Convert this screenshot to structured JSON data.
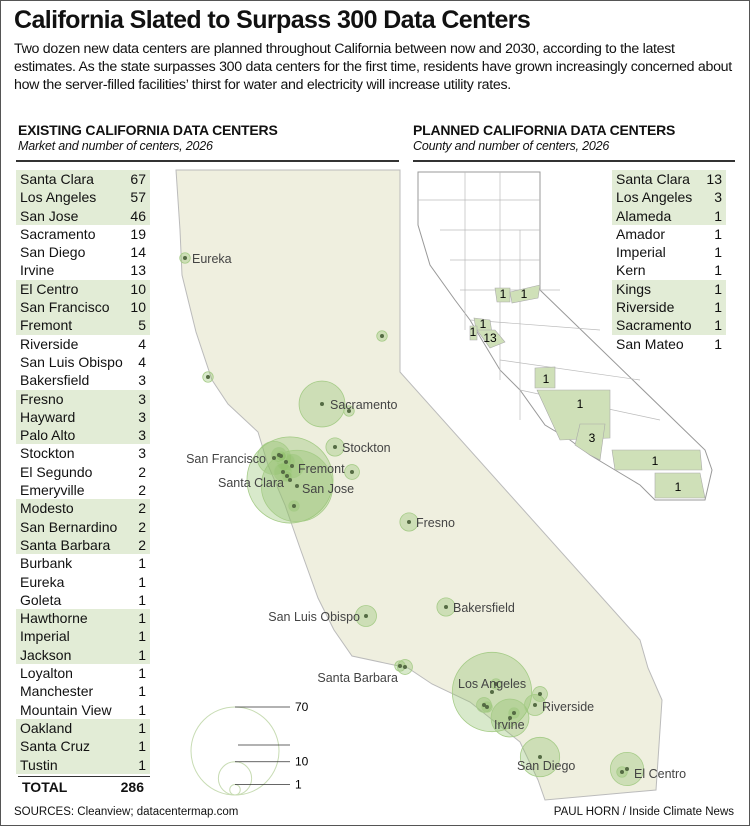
{
  "title": "California Slated to Surpass 300 Data Centers",
  "intro": "Two dozen new data centers are planned throughout California between now and 2030, according to the latest estimates. As the state surpasses 300 data centers for the first time, residents have grown increasingly concerned about how the server-filled facilities’ thirst for water and electricity will increase utility rates.",
  "existing": {
    "heading": "EXISTING CALIFORNIA DATA CENTERS",
    "subheading": "Market and number of centers, 2026",
    "rows": [
      {
        "name": "Santa Clara",
        "count": 67
      },
      {
        "name": "Los Angeles",
        "count": 57
      },
      {
        "name": "San Jose",
        "count": 46
      },
      {
        "name": "Sacramento",
        "count": 19
      },
      {
        "name": "San Diego",
        "count": 14
      },
      {
        "name": "Irvine",
        "count": 13
      },
      {
        "name": "El Centro",
        "count": 10
      },
      {
        "name": "San Francisco",
        "count": 10
      },
      {
        "name": "Fremont",
        "count": 5
      },
      {
        "name": "Riverside",
        "count": 4
      },
      {
        "name": "San Luis Obispo",
        "count": 4
      },
      {
        "name": "Bakersfield",
        "count": 3
      },
      {
        "name": "Fresno",
        "count": 3
      },
      {
        "name": "Hayward",
        "count": 3
      },
      {
        "name": "Palo Alto",
        "count": 3
      },
      {
        "name": "Stockton",
        "count": 3
      },
      {
        "name": "El Segundo",
        "count": 2
      },
      {
        "name": "Emeryville",
        "count": 2
      },
      {
        "name": "Modesto",
        "count": 2
      },
      {
        "name": "San Bernardino",
        "count": 2
      },
      {
        "name": "Santa Barbara",
        "count": 2
      },
      {
        "name": "Burbank",
        "count": 1
      },
      {
        "name": "Eureka",
        "count": 1
      },
      {
        "name": "Goleta",
        "count": 1
      },
      {
        "name": "Hawthorne",
        "count": 1
      },
      {
        "name": "Imperial",
        "count": 1
      },
      {
        "name": "Jackson",
        "count": 1
      },
      {
        "name": "Loyalton",
        "count": 1
      },
      {
        "name": "Manchester",
        "count": 1
      },
      {
        "name": "Mountain View",
        "count": 1
      },
      {
        "name": "Oakland",
        "count": 1
      },
      {
        "name": "Santa Cruz",
        "count": 1
      },
      {
        "name": "Tustin",
        "count": 1
      }
    ],
    "total_label": "TOTAL",
    "total": 286
  },
  "planned": {
    "heading": "PLANNED CALIFORNIA DATA CENTERS",
    "subheading": "County and number of centers, 2026",
    "rows": [
      {
        "name": "Santa Clara",
        "count": 13
      },
      {
        "name": "Los Angeles",
        "count": 3
      },
      {
        "name": "Alameda",
        "count": 1
      },
      {
        "name": "Amador",
        "count": 1
      },
      {
        "name": "Imperial",
        "count": 1
      },
      {
        "name": "Kern",
        "count": 1
      },
      {
        "name": "Kings",
        "count": 1
      },
      {
        "name": "Riverside",
        "count": 1
      },
      {
        "name": "Sacramento",
        "count": 1
      },
      {
        "name": "San Mateo",
        "count": 1
      }
    ]
  },
  "map_labels": [
    "Eureka",
    "Sacramento",
    "Stockton",
    "San Francisco",
    "Fremont",
    "Santa Clara",
    "San Jose",
    "Fresno",
    "San Luis Obispo",
    "Bakersfield",
    "Santa Barbara",
    "Los Angeles",
    "Riverside",
    "Irvine",
    "San Diego",
    "El Centro"
  ],
  "legend": {
    "values": [
      70,
      10,
      1
    ],
    "labels": [
      "70",
      "10",
      "1"
    ]
  },
  "footer": {
    "sources": "SOURCES: Cleanview; datacentermap.com",
    "credit": "PAUL HORN / Inside Climate News"
  },
  "colors": {
    "land": "#efefdf",
    "bubble": "#8fbf6a",
    "highlight": "#e2ecd6",
    "county_fill": "#cfe0b8"
  }
}
